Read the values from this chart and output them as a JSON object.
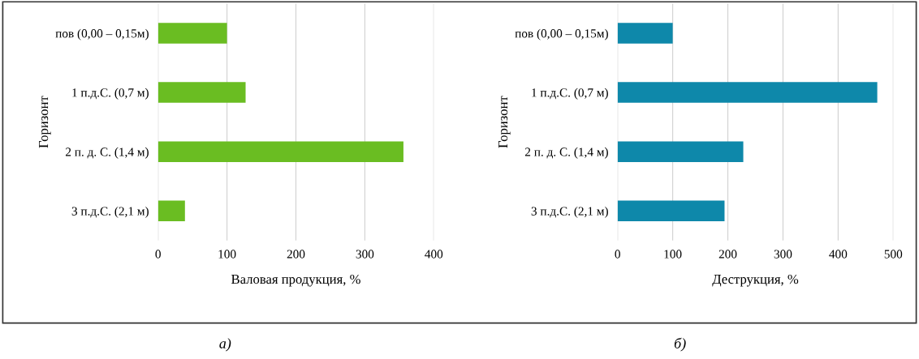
{
  "chart_data": [
    {
      "type": "bar",
      "orientation": "horizontal",
      "xlabel": "Валовая продукция, %",
      "ylabel": "Горизонт",
      "categories": [
        "пов (0,00 – 0,15м)",
        "1 п.д.С. (0,7 м)",
        "2 п. д. С. (1,4 м)",
        "3 п.д.С. (2,1 м)"
      ],
      "values": [
        100,
        127,
        356,
        39
      ],
      "color": "#6abd22",
      "xlim": [
        0,
        400
      ],
      "xticks": [
        0,
        100,
        200,
        300,
        400
      ],
      "grid": "x",
      "annotations": [
        "а)"
      ]
    },
    {
      "type": "bar",
      "orientation": "horizontal",
      "xlabel": "Деструкция, %",
      "ylabel": "Горизонт",
      "categories": [
        "пов (0,00 – 0,15м)",
        "1 п.д.С. (0,7 м)",
        "2 п. д. С. (1,4 м)",
        "3 п.д.С. (2,1 м)"
      ],
      "values": [
        100,
        471,
        228,
        194
      ],
      "color": "#0e88aa",
      "xlim": [
        0,
        500
      ],
      "xticks": [
        0,
        100,
        200,
        300,
        400,
        500
      ],
      "grid": "x",
      "annotations": [
        "б)"
      ]
    }
  ]
}
